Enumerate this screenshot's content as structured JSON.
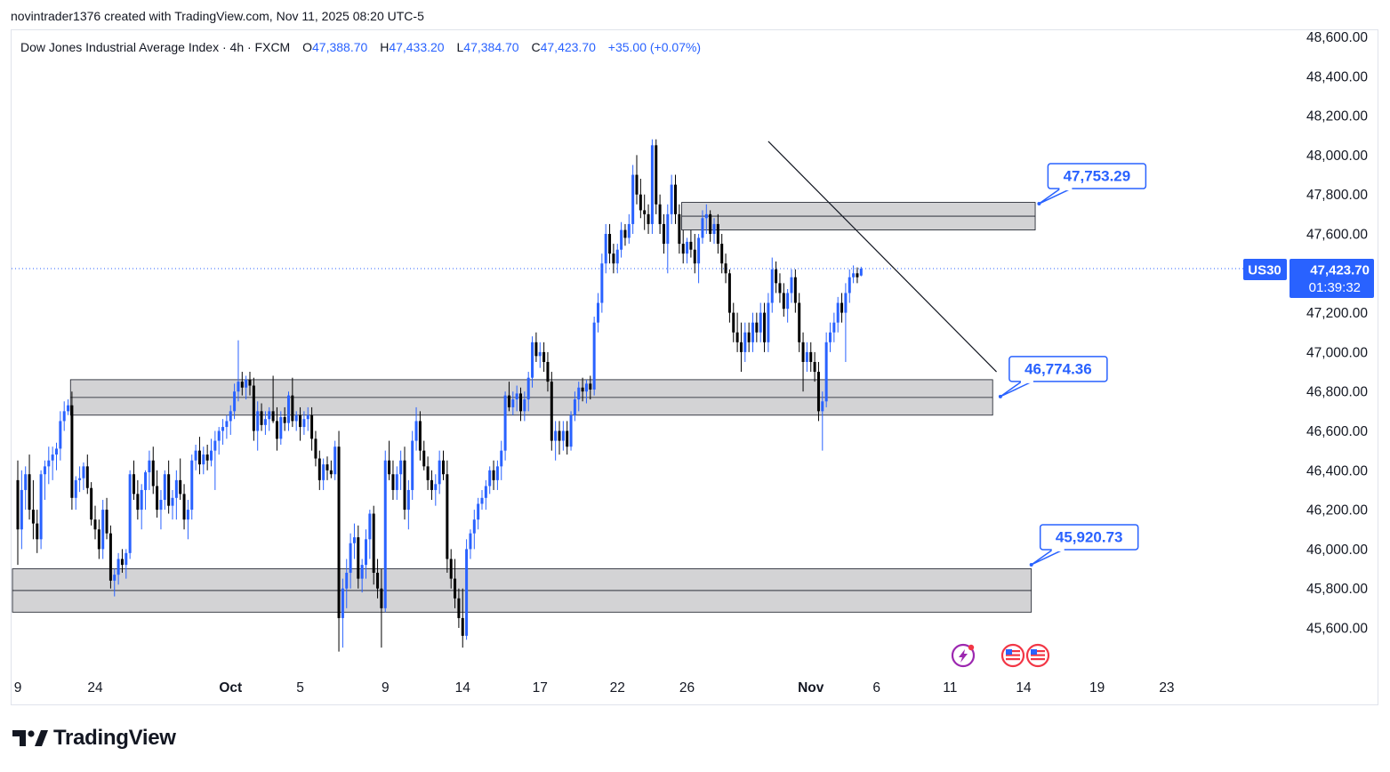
{
  "header": {
    "attribution": "novintrader1376 created with TradingView.com, Nov 11, 2025 08:20 UTC-5"
  },
  "legend": {
    "symbol": "Dow Jones Industrial Average Index · 4h · FXCM",
    "o_label": "O",
    "o_value": "47,388.70",
    "h_label": "H",
    "h_value": "47,433.20",
    "l_label": "L",
    "l_value": "47,384.70",
    "c_label": "C",
    "c_value": "47,423.70",
    "change": "+35.00 (+0.07%)"
  },
  "footer": {
    "brand": "TradingView"
  },
  "chart_data": {
    "type": "candlestick",
    "symbol": "US30",
    "interval": "4h",
    "ylim": [
      45480,
      48680
    ],
    "y_ticks": [
      "48,600.00",
      "48,400.00",
      "48,200.00",
      "48,000.00",
      "47,800.00",
      "47,600.00",
      "47,400.00",
      "47,200.00",
      "47,000.00",
      "46,800.00",
      "46,600.00",
      "46,400.00",
      "46,200.00",
      "46,000.00",
      "45,800.00",
      "45,600.00"
    ],
    "y_tick_values": [
      48600,
      48400,
      48200,
      48000,
      47800,
      47600,
      47400,
      47200,
      47000,
      46800,
      46600,
      46400,
      46200,
      46000,
      45800,
      45600
    ],
    "x_ticks": [
      "9",
      "24",
      "Oct",
      "5",
      "9",
      "14",
      "17",
      "22",
      "26",
      "Nov",
      "6",
      "11",
      "14",
      "19",
      "23"
    ],
    "x_tick_index": [
      0,
      20,
      55,
      73,
      95,
      115,
      135,
      155,
      173,
      205,
      222,
      241,
      260,
      279,
      297
    ],
    "last_price": {
      "symbol": "US30",
      "value": "47,423.70",
      "price": 47423.7,
      "countdown": "01:39:32"
    },
    "zones": [
      {
        "top": 47760,
        "bottom": 47620,
        "start_index": 173,
        "end_index": 263
      },
      {
        "top": 46860,
        "bottom": 46680,
        "start_index": 15,
        "end_index": 252
      },
      {
        "top": 45900,
        "bottom": 45680,
        "start_index": 0,
        "end_index": 262
      }
    ],
    "annotations": [
      {
        "label": "47,753.29",
        "price": 47753.29,
        "anchor_index": 264
      },
      {
        "label": "46,774.36",
        "price": 46774.36,
        "anchor_index": 254
      },
      {
        "label": "45,920.73",
        "price": 45920.73,
        "anchor_index": 262
      }
    ],
    "trendline": [
      {
        "index": 194,
        "price": 48070
      },
      {
        "index": 253,
        "price": 46900
      }
    ],
    "events": [
      "lightning-icon",
      "us-flag-icon",
      "us-flag-icon"
    ],
    "candles": [
      [
        46350,
        46450,
        45920,
        46100
      ],
      [
        46100,
        46400,
        46000,
        46300
      ],
      [
        46300,
        46420,
        46200,
        46380
      ],
      [
        46380,
        46480,
        46150,
        46200
      ],
      [
        46200,
        46350,
        46050,
        46130
      ],
      [
        46130,
        46200,
        45980,
        46050
      ],
      [
        46050,
        46400,
        46000,
        46380
      ],
      [
        46380,
        46450,
        46250,
        46420
      ],
      [
        46420,
        46520,
        46330,
        46450
      ],
      [
        46450,
        46520,
        46350,
        46480
      ],
      [
        46480,
        46540,
        46400,
        46510
      ],
      [
        46510,
        46700,
        46450,
        46650
      ],
      [
        46650,
        46750,
        46600,
        46700
      ],
      [
        46700,
        46760,
        46680,
        46730
      ],
      [
        46730,
        46800,
        46200,
        46260
      ],
      [
        46260,
        46370,
        46200,
        46350
      ],
      [
        46350,
        46420,
        46290,
        46360
      ],
      [
        46360,
        46440,
        46300,
        46420
      ],
      [
        46420,
        46480,
        46280,
        46310
      ],
      [
        46310,
        46340,
        46120,
        46150
      ],
      [
        46150,
        46220,
        46050,
        46100
      ],
      [
        46100,
        46150,
        45950,
        46000
      ],
      [
        46000,
        46250,
        45950,
        46200
      ],
      [
        46200,
        46260,
        46050,
        46080
      ],
      [
        46080,
        46120,
        45800,
        45840
      ],
      [
        45840,
        45900,
        45760,
        45870
      ],
      [
        45870,
        45980,
        45820,
        45950
      ],
      [
        45950,
        46000,
        45880,
        45920
      ],
      [
        45920,
        46000,
        45850,
        45980
      ],
      [
        45980,
        46400,
        45950,
        46380
      ],
      [
        46380,
        46450,
        46250,
        46280
      ],
      [
        46280,
        46350,
        46150,
        46200
      ],
      [
        46200,
        46330,
        46100,
        46300
      ],
      [
        46300,
        46400,
        46200,
        46390
      ],
      [
        46390,
        46500,
        46300,
        46450
      ],
      [
        46450,
        46520,
        46280,
        46320
      ],
      [
        46320,
        46400,
        46160,
        46200
      ],
      [
        46200,
        46300,
        46100,
        46250
      ],
      [
        46250,
        46400,
        46200,
        46380
      ],
      [
        46380,
        46450,
        46180,
        46220
      ],
      [
        46220,
        46300,
        46150,
        46260
      ],
      [
        46260,
        46400,
        46150,
        46350
      ],
      [
        46350,
        46460,
        46250,
        46280
      ],
      [
        46280,
        46330,
        46100,
        46150
      ],
      [
        46150,
        46250,
        46050,
        46200
      ],
      [
        46200,
        46480,
        46150,
        46450
      ],
      [
        46450,
        46530,
        46400,
        46500
      ],
      [
        46500,
        46570,
        46380,
        46430
      ],
      [
        46430,
        46520,
        46380,
        46480
      ],
      [
        46480,
        46530,
        46400,
        46450
      ],
      [
        46450,
        46560,
        46420,
        46500
      ],
      [
        46500,
        46600,
        46300,
        46550
      ],
      [
        46550,
        46620,
        46480,
        46600
      ],
      [
        46600,
        46660,
        46530,
        46620
      ],
      [
        46620,
        46680,
        46560,
        46650
      ],
      [
        46650,
        46730,
        46580,
        46700
      ],
      [
        46700,
        46840,
        46660,
        46800
      ],
      [
        46800,
        47060,
        46750,
        46850
      ],
      [
        46850,
        46900,
        46780,
        46820
      ],
      [
        46820,
        46880,
        46760,
        46860
      ],
      [
        46860,
        46900,
        46780,
        46830
      ],
      [
        46830,
        46870,
        46550,
        46600
      ],
      [
        46600,
        46750,
        46500,
        46700
      ],
      [
        46700,
        46740,
        46600,
        46630
      ],
      [
        46630,
        46700,
        46580,
        46660
      ],
      [
        46660,
        46720,
        46600,
        46700
      ],
      [
        46700,
        46880,
        46640,
        46650
      ],
      [
        46650,
        46720,
        46500,
        46560
      ],
      [
        46560,
        46700,
        46530,
        46670
      ],
      [
        46670,
        46720,
        46600,
        46640
      ],
      [
        46640,
        46800,
        46600,
        46780
      ],
      [
        46780,
        46870,
        46620,
        46650
      ],
      [
        46650,
        46700,
        46600,
        46680
      ],
      [
        46680,
        46720,
        46550,
        46620
      ],
      [
        46620,
        46700,
        46580,
        46660
      ],
      [
        46660,
        46720,
        46600,
        46680
      ],
      [
        46680,
        46720,
        46500,
        46560
      ],
      [
        46560,
        46600,
        46420,
        46460
      ],
      [
        46460,
        46500,
        46300,
        46350
      ],
      [
        46350,
        46460,
        46300,
        46430
      ],
      [
        46430,
        46470,
        46350,
        46400
      ],
      [
        46400,
        46450,
        46360,
        46380
      ],
      [
        46380,
        46550,
        46350,
        46520
      ],
      [
        46520,
        46600,
        45480,
        45650
      ],
      [
        45650,
        45850,
        45500,
        45800
      ],
      [
        45800,
        45950,
        45700,
        45880
      ],
      [
        45880,
        46080,
        45800,
        46030
      ],
      [
        46030,
        46130,
        45950,
        46060
      ],
      [
        46060,
        46120,
        45800,
        45850
      ],
      [
        45850,
        45950,
        45780,
        45920
      ],
      [
        45920,
        46100,
        45850,
        46050
      ],
      [
        46050,
        46200,
        45950,
        46180
      ],
      [
        46180,
        46220,
        45820,
        45880
      ],
      [
        45880,
        45950,
        45750,
        45800
      ],
      [
        45800,
        45900,
        45500,
        45700
      ],
      [
        45700,
        46500,
        45680,
        46450
      ],
      [
        46450,
        46550,
        46350,
        46380
      ],
      [
        46380,
        46450,
        46250,
        46300
      ],
      [
        46300,
        46420,
        46250,
        46380
      ],
      [
        46380,
        46500,
        46300,
        46450
      ],
      [
        46450,
        46520,
        46150,
        46200
      ],
      [
        46200,
        46350,
        46100,
        46300
      ],
      [
        46300,
        46600,
        46250,
        46550
      ],
      [
        46550,
        46720,
        46500,
        46650
      ],
      [
        46650,
        46700,
        46450,
        46500
      ],
      [
        46500,
        46550,
        46400,
        46420
      ],
      [
        46420,
        46470,
        46300,
        46350
      ],
      [
        46350,
        46400,
        46250,
        46300
      ],
      [
        46300,
        46380,
        46220,
        46330
      ],
      [
        46330,
        46500,
        46280,
        46450
      ],
      [
        46450,
        46500,
        46350,
        46380
      ],
      [
        46380,
        46450,
        45880,
        45950
      ],
      [
        45950,
        46000,
        45800,
        45850
      ],
      [
        45850,
        45950,
        45700,
        45750
      ],
      [
        45750,
        45800,
        45600,
        45650
      ],
      [
        45650,
        45800,
        45500,
        45560
      ],
      [
        45560,
        46050,
        45540,
        46000
      ],
      [
        46000,
        46100,
        45950,
        46080
      ],
      [
        46080,
        46200,
        46000,
        46150
      ],
      [
        46150,
        46260,
        46100,
        46230
      ],
      [
        46230,
        46300,
        46200,
        46260
      ],
      [
        46260,
        46350,
        46200,
        46320
      ],
      [
        46320,
        46420,
        46280,
        46400
      ],
      [
        46400,
        46450,
        46300,
        46350
      ],
      [
        46350,
        46450,
        46300,
        46420
      ],
      [
        46420,
        46550,
        46350,
        46500
      ],
      [
        46500,
        46800,
        46450,
        46780
      ],
      [
        46780,
        46850,
        46700,
        46720
      ],
      [
        46720,
        46800,
        46680,
        46760
      ],
      [
        46760,
        46830,
        46700,
        46790
      ],
      [
        46790,
        46820,
        46650,
        46700
      ],
      [
        46700,
        46800,
        46650,
        46760
      ],
      [
        46760,
        46900,
        46700,
        46870
      ],
      [
        46870,
        47080,
        46820,
        47050
      ],
      [
        47050,
        47100,
        46950,
        46980
      ],
      [
        46980,
        47050,
        46920,
        47000
      ],
      [
        47000,
        47050,
        46900,
        46950
      ],
      [
        46950,
        47000,
        46800,
        46850
      ],
      [
        46850,
        46900,
        46500,
        46550
      ],
      [
        46550,
        46650,
        46450,
        46600
      ],
      [
        46600,
        46650,
        46480,
        46550
      ],
      [
        46550,
        46650,
        46500,
        46600
      ],
      [
        46600,
        46650,
        46480,
        46520
      ],
      [
        46520,
        46700,
        46500,
        46680
      ],
      [
        46680,
        46800,
        46650,
        46760
      ],
      [
        46760,
        46850,
        46700,
        46820
      ],
      [
        46820,
        46870,
        46750,
        46800
      ],
      [
        46800,
        46860,
        46740,
        46840
      ],
      [
        46840,
        46880,
        46760,
        46810
      ],
      [
        46810,
        47180,
        46780,
        47150
      ],
      [
        47150,
        47300,
        47100,
        47250
      ],
      [
        47250,
        47500,
        47200,
        47450
      ],
      [
        47450,
        47650,
        47400,
        47600
      ],
      [
        47600,
        47650,
        47450,
        47500
      ],
      [
        47500,
        47550,
        47400,
        47450
      ],
      [
        47450,
        47550,
        47400,
        47520
      ],
      [
        47520,
        47660,
        47480,
        47620
      ],
      [
        47620,
        47650,
        47540,
        47580
      ],
      [
        47580,
        47700,
        47550,
        47650
      ],
      [
        47650,
        47950,
        47600,
        47900
      ],
      [
        47900,
        48000,
        47750,
        47800
      ],
      [
        47800,
        47880,
        47680,
        47720
      ],
      [
        47720,
        47800,
        47620,
        47700
      ],
      [
        47700,
        47750,
        47600,
        47650
      ],
      [
        47650,
        48080,
        47600,
        48050
      ],
      [
        48050,
        48080,
        47700,
        47750
      ],
      [
        47750,
        47800,
        47600,
        47650
      ],
      [
        47650,
        47700,
        47500,
        47550
      ],
      [
        47550,
        47750,
        47400,
        47700
      ],
      [
        47700,
        47900,
        47650,
        47850
      ],
      [
        47850,
        47900,
        47650,
        47700
      ],
      [
        47700,
        47750,
        47500,
        47550
      ],
      [
        47550,
        47620,
        47450,
        47500
      ],
      [
        47500,
        47580,
        47450,
        47560
      ],
      [
        47560,
        47620,
        47480,
        47520
      ],
      [
        47520,
        47600,
        47400,
        47450
      ],
      [
        47450,
        47600,
        47350,
        47580
      ],
      [
        47580,
        47720,
        47550,
        47680
      ],
      [
        47680,
        47750,
        47600,
        47700
      ],
      [
        47700,
        47720,
        47560,
        47600
      ],
      [
        47600,
        47680,
        47550,
        47650
      ],
      [
        47650,
        47700,
        47500,
        47550
      ],
      [
        47550,
        47600,
        47400,
        47450
      ],
      [
        47450,
        47500,
        47350,
        47400
      ],
      [
        47400,
        47420,
        47150,
        47200
      ],
      [
        47200,
        47250,
        47050,
        47100
      ],
      [
        47100,
        47200,
        47000,
        47050
      ],
      [
        47050,
        47150,
        46900,
        47000
      ],
      [
        47000,
        47150,
        46950,
        47100
      ],
      [
        47100,
        47150,
        47000,
        47050
      ],
      [
        47050,
        47200,
        47000,
        47150
      ],
      [
        47150,
        47200,
        47050,
        47100
      ],
      [
        47100,
        47250,
        47050,
        47200
      ],
      [
        47200,
        47250,
        47000,
        47050
      ],
      [
        47050,
        47300,
        47000,
        47250
      ],
      [
        47250,
        47480,
        47200,
        47420
      ],
      [
        47420,
        47460,
        47300,
        47350
      ],
      [
        47350,
        47400,
        47250,
        47300
      ],
      [
        47300,
        47350,
        47180,
        47220
      ],
      [
        47220,
        47320,
        47150,
        47300
      ],
      [
        47300,
        47420,
        47250,
        47380
      ],
      [
        47380,
        47420,
        47200,
        47250
      ],
      [
        47250,
        47300,
        47000,
        47050
      ],
      [
        47050,
        47100,
        46800,
        46950
      ],
      [
        46950,
        47050,
        46900,
        47000
      ],
      [
        47000,
        47050,
        46900,
        46950
      ],
      [
        46950,
        47000,
        46850,
        46900
      ],
      [
        46900,
        46950,
        46650,
        46700
      ],
      [
        46700,
        46800,
        46500,
        46750
      ],
      [
        46750,
        47100,
        46720,
        47050
      ],
      [
        47050,
        47150,
        47000,
        47100
      ],
      [
        47100,
        47200,
        47050,
        47150
      ],
      [
        47150,
        47280,
        47100,
        47250
      ],
      [
        47250,
        47300,
        47150,
        47200
      ],
      [
        47200,
        47350,
        46950,
        47300
      ],
      [
        47300,
        47420,
        47250,
        47380
      ],
      [
        47380,
        47440,
        47350,
        47400
      ],
      [
        47400,
        47430,
        47350,
        47380
      ],
      [
        47388.7,
        47433.2,
        47384.7,
        47423.7
      ]
    ]
  }
}
